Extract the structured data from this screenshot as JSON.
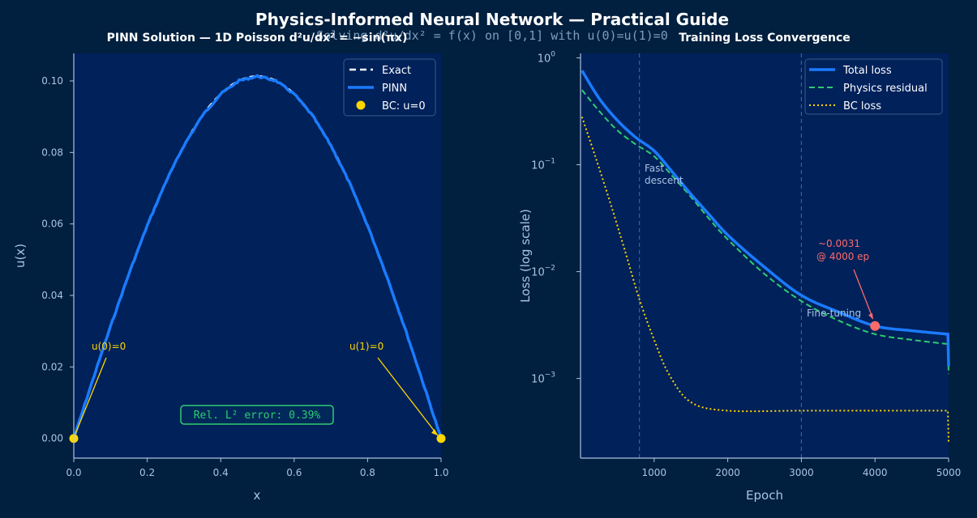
{
  "title": "Physics-Informed Neural Network  —  Practical Guide",
  "subtitle": "Solving  d²u/dx² = f(x)  on [0,1]  with  u(0)=u(1)=0",
  "colors": {
    "figure_bg": "#011f3e",
    "axes_bg": "#00215a",
    "pinn": "#1a7bff",
    "exact": "#ffffff",
    "bc": "#ffd700",
    "physics": "#2ecc71",
    "marker": "#ff6b6b",
    "text": "#a9c4e4"
  },
  "chart_data": [
    {
      "type": "line",
      "title": "PINN Solution  —  1D Poisson  d²u/dx² = −sin(πx)",
      "xlabel": "x",
      "ylabel": "u(x)",
      "xlim": [
        0,
        1
      ],
      "ylim": [
        -0.0055,
        0.1077
      ],
      "xticks": [
        "0.0",
        "0.2",
        "0.4",
        "0.6",
        "0.8",
        "1.0"
      ],
      "yticks": [
        "0.00",
        "0.02",
        "0.04",
        "0.06",
        "0.08",
        "0.10"
      ],
      "x": [
        0,
        0.05,
        0.1,
        0.15,
        0.2,
        0.25,
        0.3,
        0.35,
        0.4,
        0.45,
        0.5,
        0.55,
        0.6,
        0.65,
        0.7,
        0.75,
        0.8,
        0.85,
        0.9,
        0.95,
        1.0
      ],
      "series": [
        {
          "name": "Exact",
          "style": "dashed",
          "values": [
            0,
            0.01585,
            0.03131,
            0.046,
            0.05955,
            0.07164,
            0.08197,
            0.0903,
            0.09636,
            0.10007,
            0.10132,
            0.10007,
            0.09636,
            0.0903,
            0.08197,
            0.07164,
            0.05955,
            0.046,
            0.03131,
            0.01585,
            0
          ]
        },
        {
          "name": "PINN",
          "style": "solid",
          "values": [
            0,
            0.01585,
            0.03131,
            0.046,
            0.05955,
            0.07164,
            0.08197,
            0.0903,
            0.09636,
            0.10007,
            0.10132,
            0.10007,
            0.09636,
            0.0903,
            0.08197,
            0.07164,
            0.05955,
            0.046,
            0.03131,
            0.01585,
            0
          ]
        }
      ],
      "bc_points": {
        "name": "BC: u=0",
        "x": [
          0,
          1
        ],
        "y": [
          0,
          0
        ]
      },
      "annotations": [
        {
          "text": "u(0)=0",
          "target_x": 0,
          "target_y": 0
        },
        {
          "text": "u(1)=0",
          "target_x": 1,
          "target_y": 0
        }
      ],
      "error_box": "Rel. L² error: 0.39%",
      "legend": "top-right"
    },
    {
      "type": "line",
      "title": "Training Loss Convergence",
      "xlabel": "Epoch",
      "ylabel": "Loss  (log scale)",
      "yscale": "log",
      "xlim": [
        0,
        5000
      ],
      "ylim": [
        0.00018,
        1.1
      ],
      "xticks": [
        "1000",
        "2000",
        "3000",
        "4000",
        "5000"
      ],
      "yticks": [
        {
          "base": "10",
          "exp": "0",
          "value": 1
        },
        {
          "base": "10",
          "exp": "−1",
          "value": 0.1
        },
        {
          "base": "10",
          "exp": "−2",
          "value": 0.01
        },
        {
          "base": "10",
          "exp": "−3",
          "value": 0.001
        }
      ],
      "series": [
        {
          "name": "Total loss",
          "style": "solid",
          "x": [
            20,
            250,
            500,
            750,
            1000,
            1250,
            1500,
            1750,
            2000,
            2500,
            3000,
            3500,
            4000,
            4500,
            4990,
            5000
          ],
          "values": [
            0.76,
            0.42,
            0.26,
            0.18,
            0.135,
            0.085,
            0.053,
            0.034,
            0.022,
            0.011,
            0.006,
            0.0042,
            0.0031,
            0.0028,
            0.0026,
            0.0013
          ]
        },
        {
          "name": "Physics residual",
          "style": "dashed",
          "x": [
            20,
            250,
            500,
            750,
            1000,
            1250,
            1500,
            1750,
            2000,
            2500,
            3000,
            3500,
            4000,
            4500,
            4990,
            5000
          ],
          "values": [
            0.5,
            0.32,
            0.21,
            0.155,
            0.12,
            0.078,
            0.05,
            0.031,
            0.02,
            0.0095,
            0.0053,
            0.0035,
            0.0026,
            0.0023,
            0.0021,
            0.0011
          ]
        },
        {
          "name": "BC loss",
          "style": "dotted",
          "x": [
            20,
            200,
            400,
            600,
            800,
            1000,
            1200,
            1500,
            2000,
            3000,
            4000,
            4990,
            5000
          ],
          "values": [
            0.28,
            0.12,
            0.045,
            0.016,
            0.0055,
            0.0023,
            0.0011,
            0.0006,
            0.0005,
            0.0005,
            0.0005,
            0.0005,
            0.00025
          ]
        }
      ],
      "vlines": [
        800,
        3000
      ],
      "annotations": [
        {
          "text": "Fast\ndescent"
        },
        {
          "text": "Fine-tuning"
        },
        {
          "text": "~0.0031\n@ 4000 ep",
          "target_x": 4000,
          "target_y": 0.0031
        }
      ],
      "legend": "top-right"
    }
  ]
}
